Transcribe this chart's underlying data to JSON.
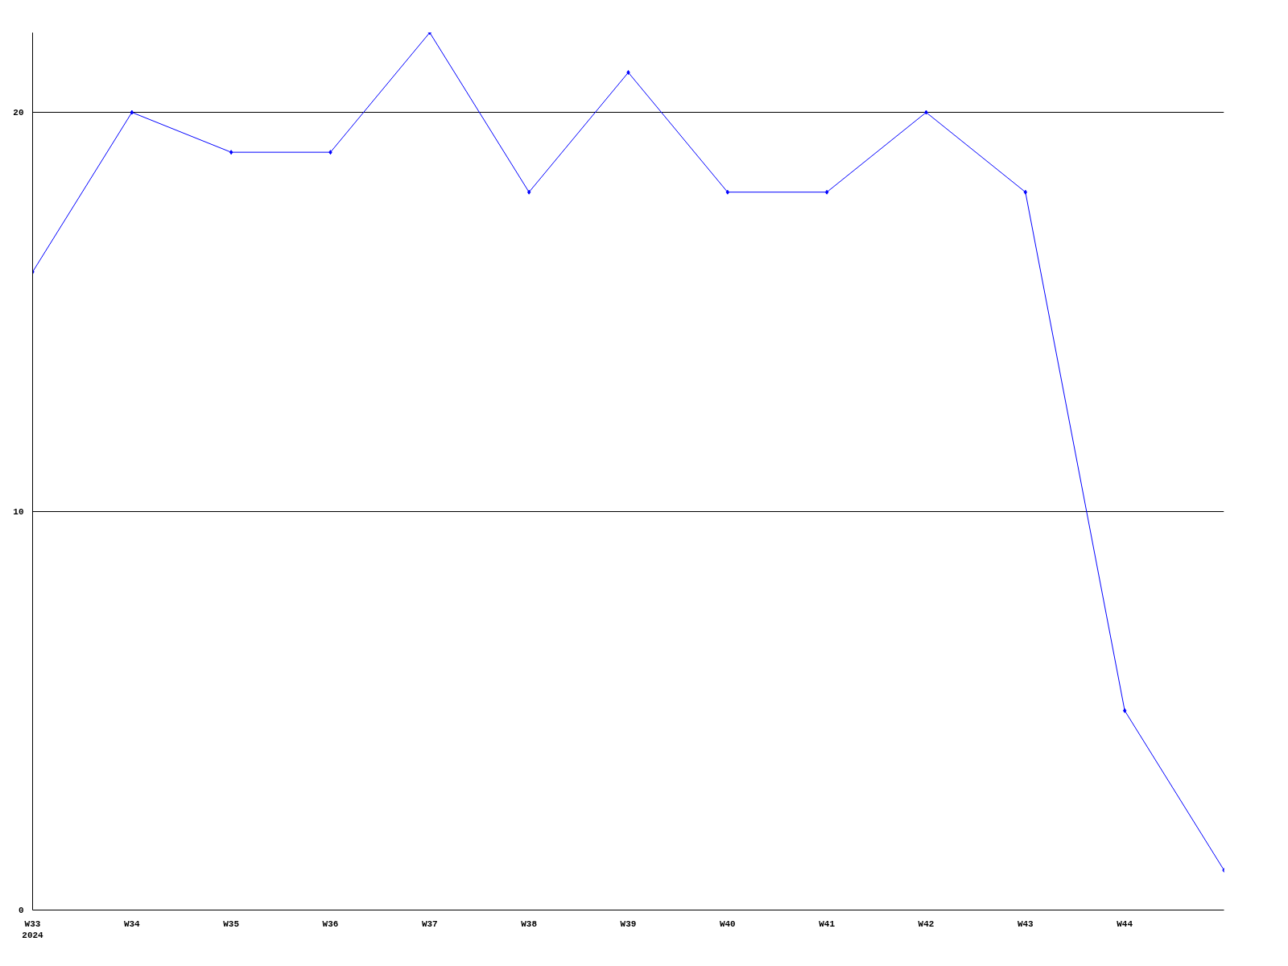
{
  "chart_data": {
    "type": "line",
    "categories": [
      "W33\n2024",
      "W34",
      "W35",
      "W36",
      "W37",
      "W38",
      "W39",
      "W40",
      "W41",
      "W42",
      "W43",
      "W44",
      null
    ],
    "series": [
      {
        "color": "#0000ff",
        "values": [
          16,
          20,
          19,
          19,
          22,
          18,
          21,
          18,
          18,
          20,
          18,
          5,
          1
        ]
      }
    ],
    "ylim": [
      0,
      22
    ],
    "yticks": [
      0,
      10,
      20
    ],
    "grid": "y",
    "marker": "diamond",
    "line_style": "solid"
  }
}
